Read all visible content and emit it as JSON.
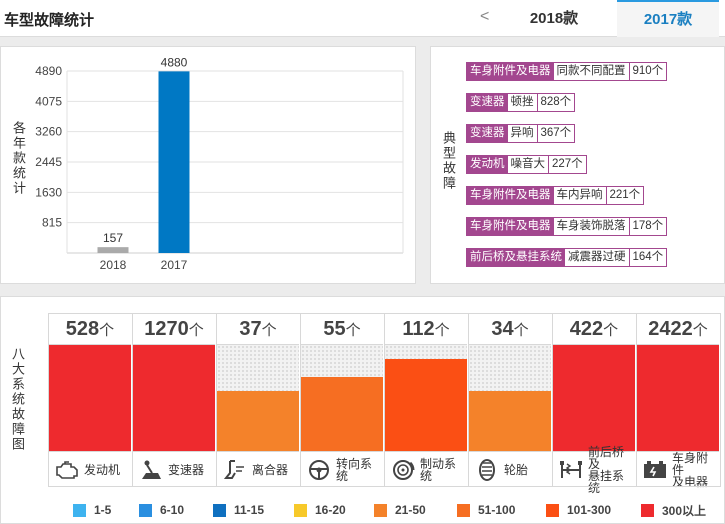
{
  "header": {
    "title": "车型故障统计",
    "prev_arrow": "<",
    "tabs": [
      {
        "label": "2018款",
        "active": false
      },
      {
        "label": "2017款",
        "active": true
      }
    ]
  },
  "yearly": {
    "side_label": "各年款统计",
    "chart_data": {
      "type": "bar",
      "categories": [
        "2018",
        "2017"
      ],
      "values": [
        157,
        4880
      ],
      "data_labels": [
        "157",
        "4880"
      ],
      "yticks": [
        "815",
        "1630",
        "2445",
        "3260",
        "4075",
        "4890"
      ],
      "ylim": [
        0,
        4890
      ],
      "colors": [
        "#aaaaaa",
        "#0078c4"
      ],
      "grid": true
    }
  },
  "typical": {
    "side_label": "典型故障",
    "items": [
      {
        "category": "车身附件及电器",
        "desc": "同款不同配置",
        "count": "910个"
      },
      {
        "category": "变速器",
        "desc": "顿挫",
        "count": "828个"
      },
      {
        "category": "变速器",
        "desc": "异响",
        "count": "367个"
      },
      {
        "category": "发动机",
        "desc": "噪音大",
        "count": "227个"
      },
      {
        "category": "车身附件及电器",
        "desc": "车内异响",
        "count": "221个"
      },
      {
        "category": "车身附件及电器",
        "desc": "车身装饰脱落",
        "count": "178个"
      },
      {
        "category": "前后桥及悬挂系统",
        "desc": "减震器过硬",
        "count": "164个"
      }
    ]
  },
  "systems": {
    "side_label": "八大系统故障图",
    "unit": "个",
    "items": [
      {
        "name": "发动机",
        "count": "528",
        "level": 1.0,
        "color": "#ee2a2e",
        "icon": "engine-icon"
      },
      {
        "name": "变速器",
        "count": "1270",
        "level": 1.0,
        "color": "#ee2a2e",
        "icon": "gear-shift-icon"
      },
      {
        "name": "离合器",
        "count": "37",
        "level": 0.57,
        "color": "#f4822a",
        "icon": "clutch-pedal-icon"
      },
      {
        "name": "转向系统",
        "count": "55",
        "level": 0.7,
        "color": "#f66e22",
        "icon": "steering-wheel-icon"
      },
      {
        "name": "制动系统",
        "count": "112",
        "level": 0.87,
        "color": "#fb4f14",
        "icon": "brake-disc-icon"
      },
      {
        "name": "轮胎",
        "count": "34",
        "level": 0.57,
        "color": "#f4822a",
        "icon": "tire-icon"
      },
      {
        "name": "前后桥及\n悬挂系统",
        "count": "422",
        "level": 1.0,
        "color": "#ee2a2e",
        "icon": "suspension-icon"
      },
      {
        "name": "车身附件\n及电器",
        "count": "2422",
        "level": 1.0,
        "color": "#ee2a2e",
        "icon": "battery-icon"
      }
    ]
  },
  "legend": [
    {
      "label": "1-5",
      "color": "#3eb3ef"
    },
    {
      "label": "6-10",
      "color": "#2a8fe0"
    },
    {
      "label": "11-15",
      "color": "#0f70c0"
    },
    {
      "label": "16-20",
      "color": "#f7c92a"
    },
    {
      "label": "21-50",
      "color": "#f4822a"
    },
    {
      "label": "51-100",
      "color": "#f66e22"
    },
    {
      "label": "101-300",
      "color": "#fb4f14"
    },
    {
      "label": "300以上",
      "color": "#ee2a2e"
    }
  ]
}
